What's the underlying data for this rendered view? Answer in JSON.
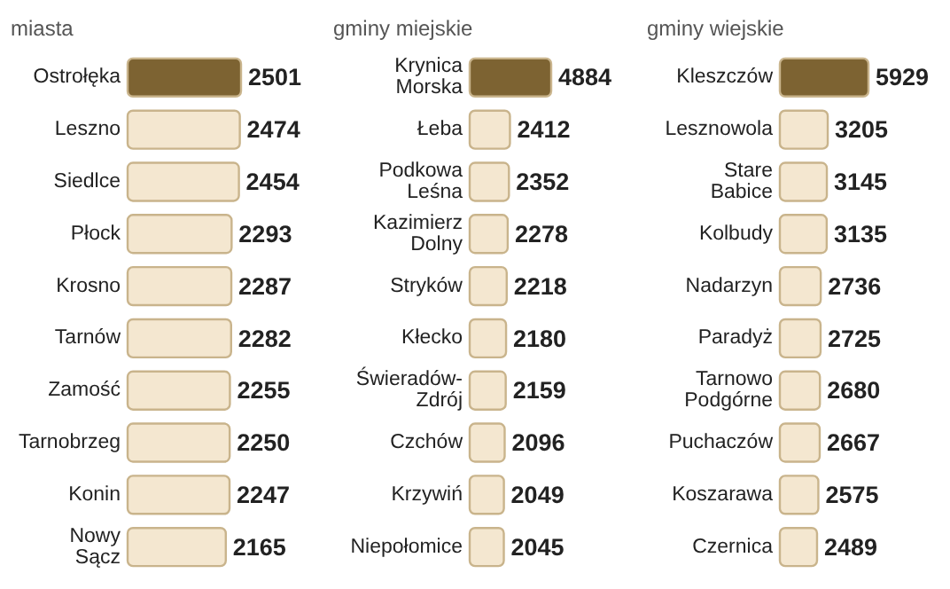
{
  "chart_data": [
    {
      "type": "bar",
      "orientation": "horizontal",
      "title": "miasta",
      "categories": [
        "Ostrołęka",
        "Leszno",
        "Siedlce",
        "Płock",
        "Krosno",
        "Tarnów",
        "Zamość",
        "Tarnobrzeg",
        "Konin",
        "Nowy Sącz"
      ],
      "values": [
        2501,
        2474,
        2454,
        2293,
        2287,
        2282,
        2255,
        2250,
        2247,
        2165
      ],
      "colors": [
        "#7d6332",
        "#f4e7d0",
        "#f4e7d0",
        "#f4e7d0",
        "#f4e7d0",
        "#f4e7d0",
        "#f4e7d0",
        "#f4e7d0",
        "#f4e7d0",
        "#f4e7d0"
      ],
      "data_labels": true
    },
    {
      "type": "bar",
      "orientation": "horizontal",
      "title": "gminy miejskie",
      "categories": [
        "Krynica Morska",
        "Łeba",
        "Podkowa Leśna",
        "Kazimierz Dolny",
        "Stryków",
        "Kłecko",
        "Świeradów-Zdrój",
        "Czchów",
        "Krzywiń",
        "Niepołomice"
      ],
      "values": [
        4884,
        2412,
        2352,
        2278,
        2218,
        2180,
        2159,
        2096,
        2049,
        2045
      ],
      "colors": [
        "#7d6332",
        "#f4e7d0",
        "#f4e7d0",
        "#f4e7d0",
        "#f4e7d0",
        "#f4e7d0",
        "#f4e7d0",
        "#f4e7d0",
        "#f4e7d0",
        "#f4e7d0"
      ],
      "data_labels": true
    },
    {
      "type": "bar",
      "orientation": "horizontal",
      "title": "gminy wiejskie",
      "categories": [
        "Kleszczów",
        "Lesznowola",
        "Stare Babice",
        "Kolbudy",
        "Nadarzyn",
        "Paradyż",
        "Tarnowo Podgórne",
        "Puchaczów",
        "Koszarawa",
        "Czernica"
      ],
      "values": [
        5929,
        3205,
        3145,
        3135,
        2736,
        2725,
        2680,
        2667,
        2575,
        2489
      ],
      "colors": [
        "#7d6332",
        "#f4e7d0",
        "#f4e7d0",
        "#f4e7d0",
        "#f4e7d0",
        "#f4e7d0",
        "#f4e7d0",
        "#f4e7d0",
        "#f4e7d0",
        "#f4e7d0"
      ],
      "data_labels": true
    }
  ]
}
